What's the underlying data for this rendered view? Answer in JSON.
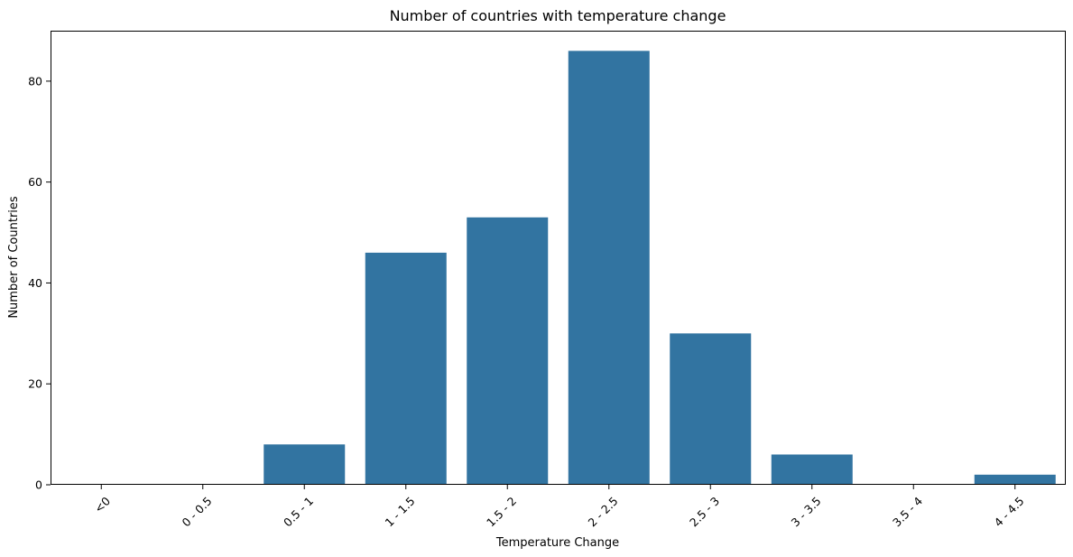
{
  "chart_data": {
    "type": "bar",
    "title": "Number of countries with temperature change",
    "xlabel": "Temperature Change",
    "ylabel": "Number of Countries",
    "categories": [
      "<0",
      "0 - 0.5",
      "0.5 - 1",
      "1 - 1.5",
      "1.5 - 2",
      "2 - 2.5",
      "2.5 - 3",
      "3 - 3.5",
      "3.5 - 4",
      "4 - 4.5"
    ],
    "values": [
      0,
      0,
      8,
      46,
      53,
      86,
      30,
      6,
      0,
      2
    ],
    "ylim": [
      0,
      90
    ],
    "yticks": [
      0,
      20,
      40,
      60,
      80
    ],
    "grid": false,
    "legend": "none",
    "bar_color": "#3274a1",
    "xtick_rotation": 45
  }
}
